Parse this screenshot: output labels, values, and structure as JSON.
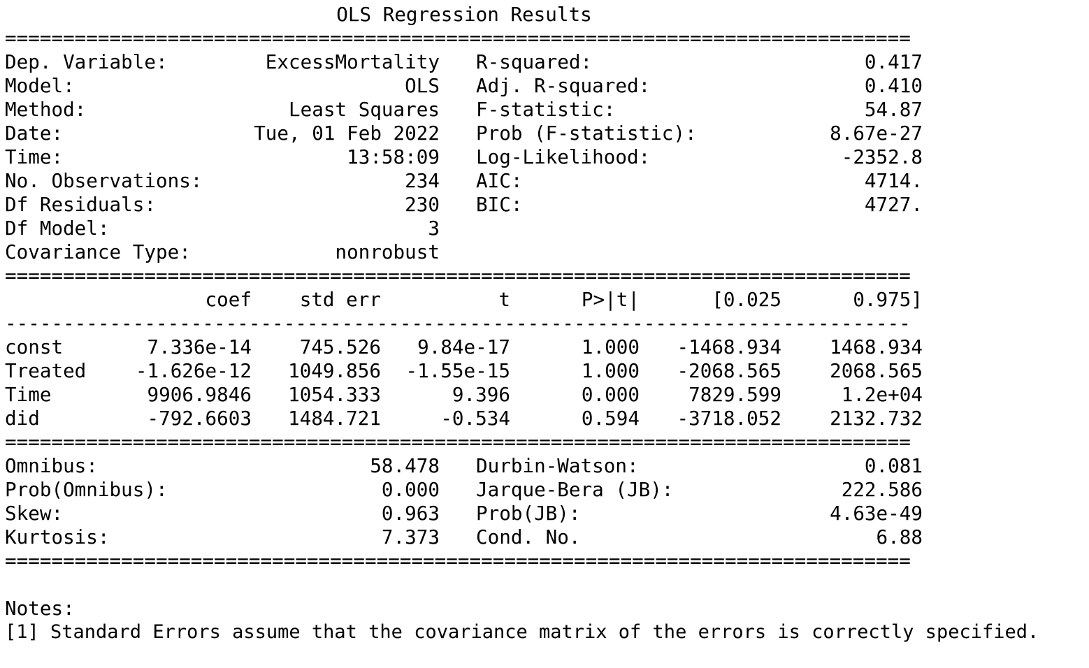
{
  "title": "OLS Regression Results",
  "separators": {
    "double": "==============================================================================",
    "single": "------------------------------------------------------------------------------"
  },
  "summary": {
    "left": [
      {
        "label": "Dep. Variable:",
        "value": "ExcessMortality"
      },
      {
        "label": "Model:",
        "value": "OLS"
      },
      {
        "label": "Method:",
        "value": "Least Squares"
      },
      {
        "label": "Date:",
        "value": "Tue, 01 Feb 2022"
      },
      {
        "label": "Time:",
        "value": "13:58:09"
      },
      {
        "label": "No. Observations:",
        "value": "234"
      },
      {
        "label": "Df Residuals:",
        "value": "230"
      },
      {
        "label": "Df Model:",
        "value": "3"
      },
      {
        "label": "Covariance Type:",
        "value": "nonrobust"
      }
    ],
    "right": [
      {
        "label": "R-squared:",
        "value": "0.417"
      },
      {
        "label": "Adj. R-squared:",
        "value": "0.410"
      },
      {
        "label": "F-statistic:",
        "value": "54.87"
      },
      {
        "label": "Prob (F-statistic):",
        "value": "8.67e-27"
      },
      {
        "label": "Log-Likelihood:",
        "value": "-2352.8"
      },
      {
        "label": "AIC:",
        "value": "4714."
      },
      {
        "label": "BIC:",
        "value": "4727."
      }
    ]
  },
  "coef_table": {
    "headers": [
      "coef",
      "std err",
      "t",
      "P>|t|",
      "[0.025",
      "0.975]"
    ],
    "rows": [
      {
        "name": "const",
        "cells": [
          "7.336e-14",
          "745.526",
          "9.84e-17",
          "1.000",
          "-1468.934",
          "1468.934"
        ]
      },
      {
        "name": "Treated",
        "cells": [
          "-1.626e-12",
          "1049.856",
          "-1.55e-15",
          "1.000",
          "-2068.565",
          "2068.565"
        ]
      },
      {
        "name": "Time",
        "cells": [
          "9906.9846",
          "1054.333",
          "9.396",
          "0.000",
          "7829.599",
          "1.2e+04"
        ]
      },
      {
        "name": "did",
        "cells": [
          "-792.6603",
          "1484.721",
          "-0.534",
          "0.594",
          "-3718.052",
          "2132.732"
        ]
      }
    ]
  },
  "diagnostics": {
    "left": [
      {
        "label": "Omnibus:",
        "value": "58.478"
      },
      {
        "label": "Prob(Omnibus):",
        "value": "0.000"
      },
      {
        "label": "Skew:",
        "value": "0.963"
      },
      {
        "label": "Kurtosis:",
        "value": "7.373"
      }
    ],
    "right": [
      {
        "label": "Durbin-Watson:",
        "value": "0.081"
      },
      {
        "label": "Jarque-Bera (JB):",
        "value": "222.586"
      },
      {
        "label": "Prob(JB):",
        "value": "4.63e-49"
      },
      {
        "label": "Cond. No.",
        "value": "6.88"
      }
    ]
  },
  "notes": {
    "heading": "Notes:",
    "items": [
      "[1] Standard Errors assume that the covariance matrix of the errors is correctly specified."
    ]
  }
}
